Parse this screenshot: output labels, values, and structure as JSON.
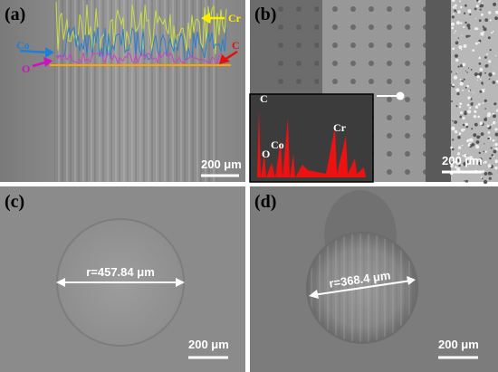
{
  "panels": [
    {
      "label": "(a)",
      "annotations": [
        "Cr",
        "Co",
        "C",
        "O"
      ],
      "scale_bar": "200 μm"
    },
    {
      "label": "(b)",
      "inset_labels": [
        "C",
        "O",
        "Co",
        "Cr"
      ],
      "scale_bar": "200 μm"
    },
    {
      "label": "(c)",
      "radius_label": "r=457.84 μm",
      "scale_bar": "200 μm"
    },
    {
      "label": "(d)",
      "radius_label": "r=368.4 μm",
      "scale_bar": "200 μm"
    }
  ]
}
